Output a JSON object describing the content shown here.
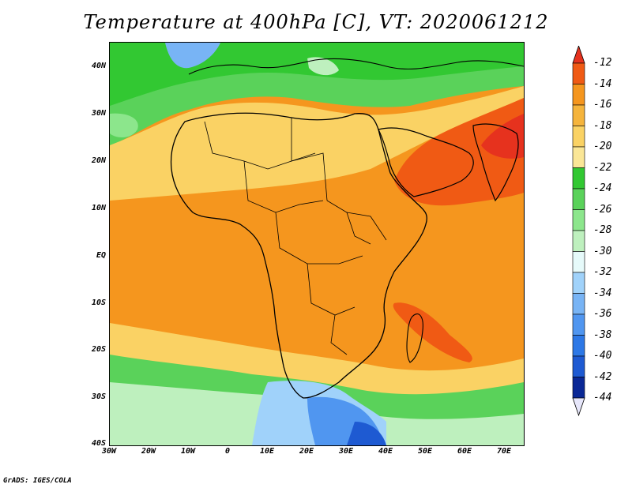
{
  "title": "Temperature at 400hPa [C], VT: 2020061212",
  "credit": "GrADS: IGES/COLA",
  "map": {
    "lat_labels": [
      "40N",
      "30N",
      "20N",
      "10N",
      "EQ",
      "10S",
      "20S",
      "30S",
      "40S"
    ],
    "lon_labels": [
      "30W",
      "20W",
      "10W",
      "0",
      "10E",
      "20E",
      "30E",
      "40E",
      "50E",
      "60E",
      "70E"
    ],
    "lat_range": [
      -40,
      45
    ],
    "lon_range": [
      -30,
      75
    ]
  },
  "colorbar": {
    "labels": [
      "-12",
      "-14",
      "-16",
      "-18",
      "-20",
      "-22",
      "-24",
      "-26",
      "-28",
      "-30",
      "-32",
      "-34",
      "-36",
      "-38",
      "-40",
      "-42",
      "-44"
    ],
    "colors": [
      "#e6321e",
      "#f05a14",
      "#f5961e",
      "#f5b43c",
      "#fad264",
      "#fae696",
      "#32c832",
      "#5ad25a",
      "#8ce68c",
      "#bef0be",
      "#e6fafa",
      "#a0d2fa",
      "#78b4f5",
      "#5096f0",
      "#2d78e6",
      "#1e5ad2",
      "#0a2896",
      "#e6e6fa"
    ]
  }
}
